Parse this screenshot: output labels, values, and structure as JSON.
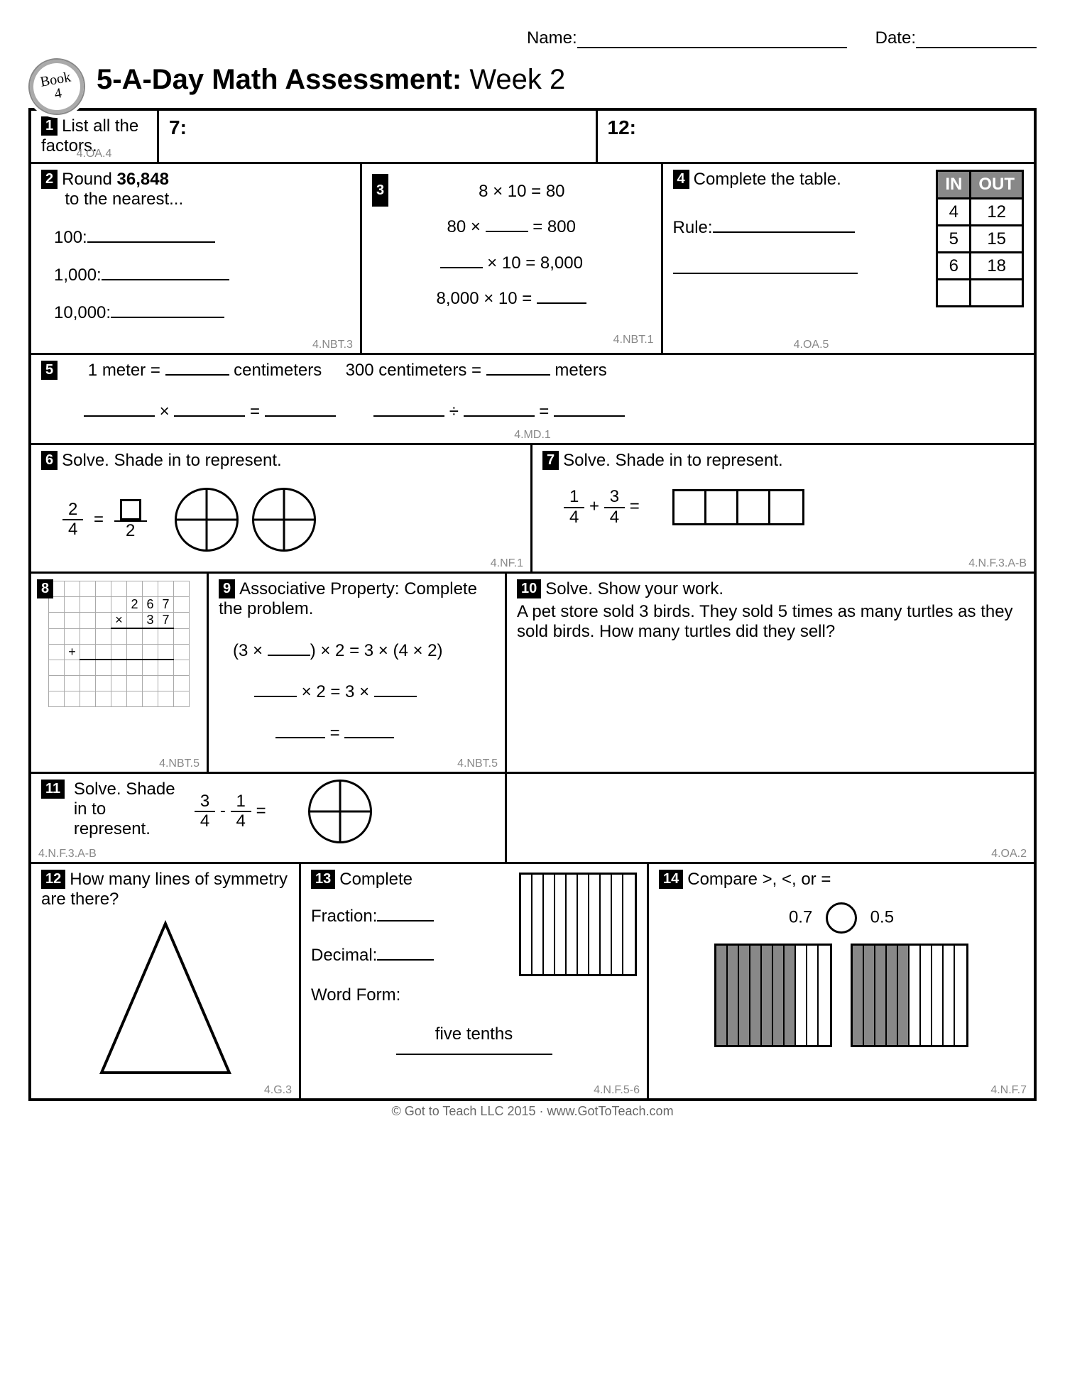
{
  "header": {
    "name_label": "Name:",
    "date_label": "Date:",
    "badge_line1": "Book",
    "badge_line2": "4",
    "title_bold": "5-A-Day Math Assessment:",
    "title_light": " Week 2"
  },
  "q1": {
    "num": "1",
    "text": "List all the factors.",
    "std": "4.OA.4",
    "a": "7:",
    "b": "12:"
  },
  "q2": {
    "num": "2",
    "text_a": "Round ",
    "text_b": "36,848",
    "text_c": " to the nearest...",
    "r1": "100:",
    "r2": "1,000:",
    "r3": "10,000:",
    "std": "4.NBT.3"
  },
  "q3": {
    "num": "3",
    "l1": "8 × 10 = 80",
    "l2a": "80 × ",
    "l2b": " = 800",
    "l3a": "",
    "l3b": " × 10 = 8,000",
    "l4a": "8,000 × 10 = ",
    "std": "4.NBT.1"
  },
  "q4": {
    "num": "4",
    "text": "Complete the table.",
    "rule": "Rule:",
    "in": "IN",
    "out": "OUT",
    "rows": [
      [
        "4",
        "12"
      ],
      [
        "5",
        "15"
      ],
      [
        "6",
        "18"
      ],
      [
        "",
        ""
      ]
    ],
    "std": "4.OA.5"
  },
  "q5": {
    "num": "5",
    "l1a": "1 meter = ",
    "l1b": " centimeters",
    "l1c": "300 centimeters = ",
    "l1d": " meters",
    "op1": " × ",
    "op2": " = ",
    "op3": " ÷ ",
    "std": "4.MD.1"
  },
  "q6": {
    "num": "6",
    "text": "Solve. Shade in to represent.",
    "fn": "2",
    "fd": "4",
    "eq": " = ",
    "fd2": "2",
    "std": "4.NF.1"
  },
  "q7": {
    "num": "7",
    "text": "Solve. Shade in to represent.",
    "f1n": "1",
    "f1d": "4",
    "plus": " + ",
    "f2n": "3",
    "f2d": "4",
    "eq": " = ",
    "std": "4.N.F.3.A-B"
  },
  "q8": {
    "num": "8",
    "top": [
      "2",
      "6",
      "7"
    ],
    "bot": [
      "3",
      "7"
    ],
    "times": "×",
    "plus": "+",
    "std": "4.NBT.5"
  },
  "q9": {
    "num": "9",
    "text": "Associative Property: Complete the problem.",
    "l1a": "(3 × ",
    "l1b": ") × 2 = 3 × (4 × 2)",
    "l2a": " × 2 = 3 × ",
    "l3": " = ",
    "std": "4.NBT.5"
  },
  "q10": {
    "num": "10",
    "t1": "Solve. Show your work.",
    "t2": "A pet store sold 3 birds. They sold 5 times as many turtles as they sold birds. How many turtles did they sell?",
    "std": "4.OA.2"
  },
  "q11": {
    "num": "11",
    "text": "Solve. Shade in to represent.",
    "f1n": "3",
    "f1d": "4",
    "minus": " - ",
    "f2n": "1",
    "f2d": "4",
    "eq": " = ",
    "std": "4.N.F.3.A-B"
  },
  "q12": {
    "num": "12",
    "text": "How many lines of symmetry are there?",
    "std": "4.G.3"
  },
  "q13": {
    "num": "13",
    "title": "Complete",
    "frac": "Fraction:",
    "dec": "Decimal:",
    "wf": "Word Form:",
    "wf_ans": "five tenths",
    "std": "4.N.F.5-6"
  },
  "q14": {
    "num": "14",
    "text": "Compare >, <, or =",
    "a": "0.7",
    "b": "0.5",
    "shade_a": 7,
    "shade_b": 5,
    "std": "4.N.F.7"
  },
  "footer": "© Got to Teach LLC 2015 · www.GotToTeach.com"
}
